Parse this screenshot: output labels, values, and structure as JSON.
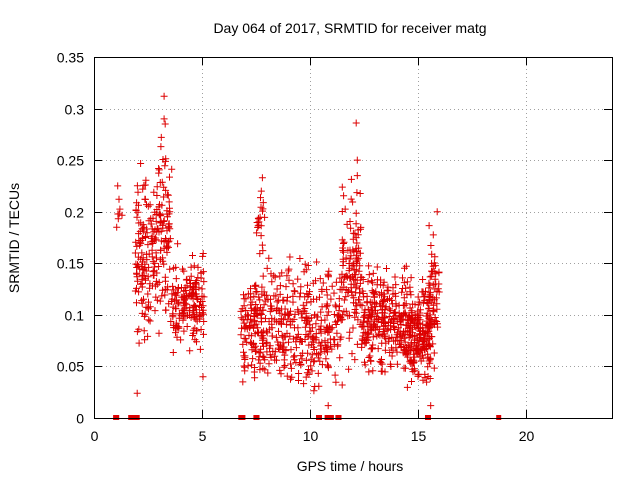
{
  "chart_data": {
    "type": "scatter",
    "title": "Day 064 of 2017, SRMTID for receiver matg",
    "xlabel": "GPS time / hours",
    "ylabel": "SRMTID / TECUs",
    "xlim": [
      0,
      24
    ],
    "ylim": [
      0,
      0.35
    ],
    "grid": true,
    "marker": "+",
    "color": "#dd0000",
    "xticks": [
      0,
      5,
      10,
      15,
      20
    ],
    "xtick_labels": [
      "0",
      "5",
      "10",
      "15",
      "20"
    ],
    "yticks": [
      0,
      0.05,
      0.1,
      0.15,
      0.2,
      0.25,
      0.3,
      0.35
    ],
    "ytick_labels": [
      "0",
      "0.05",
      "0.1",
      "0.15",
      "0.2",
      "0.25",
      "0.3",
      "0.35"
    ],
    "series": [
      {
        "name": "SRMTID",
        "clusters": [
          {
            "x0": 1.0,
            "x1": 1.3,
            "n": 6,
            "ylo": 0.17,
            "yhi": 0.23
          },
          {
            "x0": 1.9,
            "x1": 3.0,
            "n": 150,
            "ylo": 0.05,
            "yhi": 0.27
          },
          {
            "x0": 3.0,
            "x1": 3.6,
            "n": 80,
            "ylo": 0.06,
            "yhi": 0.31
          },
          {
            "x0": 3.6,
            "x1": 5.1,
            "n": 160,
            "ylo": 0.04,
            "yhi": 0.18
          },
          {
            "x0": 6.8,
            "x1": 8.0,
            "n": 140,
            "ylo": 0.02,
            "yhi": 0.16
          },
          {
            "x0": 7.5,
            "x1": 8.0,
            "n": 20,
            "ylo": 0.15,
            "yhi": 0.235
          },
          {
            "x0": 8.0,
            "x1": 11.5,
            "n": 320,
            "ylo": 0.01,
            "yhi": 0.17
          },
          {
            "x0": 11.5,
            "x1": 12.4,
            "n": 120,
            "ylo": 0.03,
            "yhi": 0.25
          },
          {
            "x0": 12.4,
            "x1": 14.5,
            "n": 280,
            "ylo": 0.03,
            "yhi": 0.16
          },
          {
            "x0": 14.5,
            "x1": 15.6,
            "n": 200,
            "ylo": 0.02,
            "yhi": 0.15
          },
          {
            "x0": 15.5,
            "x1": 16.0,
            "n": 60,
            "ylo": 0.03,
            "yhi": 0.2
          }
        ],
        "points": [
          {
            "x": 1.05,
            "y": 0.185
          },
          {
            "x": 1.1,
            "y": 0.225
          },
          {
            "x": 3.25,
            "y": 0.312
          },
          {
            "x": 3.25,
            "y": 0.29
          },
          {
            "x": 3.3,
            "y": 0.285
          },
          {
            "x": 12.15,
            "y": 0.286
          },
          {
            "x": 12.2,
            "y": 0.25
          },
          {
            "x": 12.2,
            "y": 0.235
          },
          {
            "x": 7.8,
            "y": 0.233
          },
          {
            "x": 7.75,
            "y": 0.22
          },
          {
            "x": 2.0,
            "y": 0.024
          },
          {
            "x": 5.05,
            "y": 0.04
          },
          {
            "x": 10.85,
            "y": 0.012
          },
          {
            "x": 15.6,
            "y": 0.012
          },
          {
            "x": 15.9,
            "y": 0.2
          }
        ],
        "zero_points": [
          1.0,
          1.05,
          1.7,
          1.75,
          1.95,
          2.0,
          6.8,
          6.85,
          6.9,
          7.5,
          7.55,
          10.4,
          10.45,
          10.8,
          10.85,
          10.9,
          10.95,
          11.0,
          11.3,
          11.35,
          15.45,
          15.5,
          18.75
        ]
      }
    ]
  }
}
